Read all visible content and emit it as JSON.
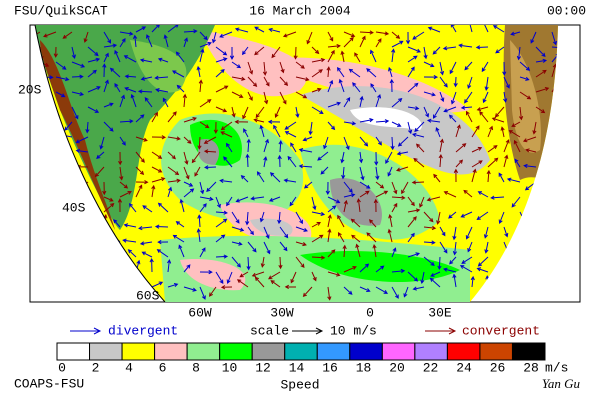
{
  "header": {
    "left": "FSU/QuikSCAT",
    "center": "16 March 2004",
    "right": "00:00"
  },
  "map": {
    "lat_labels": [
      "20S",
      "40S",
      "60S"
    ],
    "lon_labels": [
      "60W",
      "30W",
      "0",
      "30E"
    ]
  },
  "legend": {
    "divergent": "divergent",
    "scale": "scale",
    "scale_value": "10 m/s",
    "convergent": "convergent"
  },
  "colorbar": {
    "ticks": [
      0,
      2,
      4,
      6,
      8,
      10,
      12,
      14,
      16,
      18,
      20,
      22,
      24,
      26,
      28
    ],
    "unit": "m/s",
    "title": "Speed",
    "colors": [
      "#ffffff",
      "#c8c8c8",
      "#ffff00",
      "#ffc0c0",
      "#90ee90",
      "#00ff00",
      "#999999",
      "#00b0b0",
      "#3399ff",
      "#0000cc",
      "#ff66ff",
      "#b080ff",
      "#ff0000",
      "#cc4400",
      "#000000"
    ]
  },
  "footer": {
    "left": "COAPS-FSU",
    "right": "Yan Gu"
  }
}
